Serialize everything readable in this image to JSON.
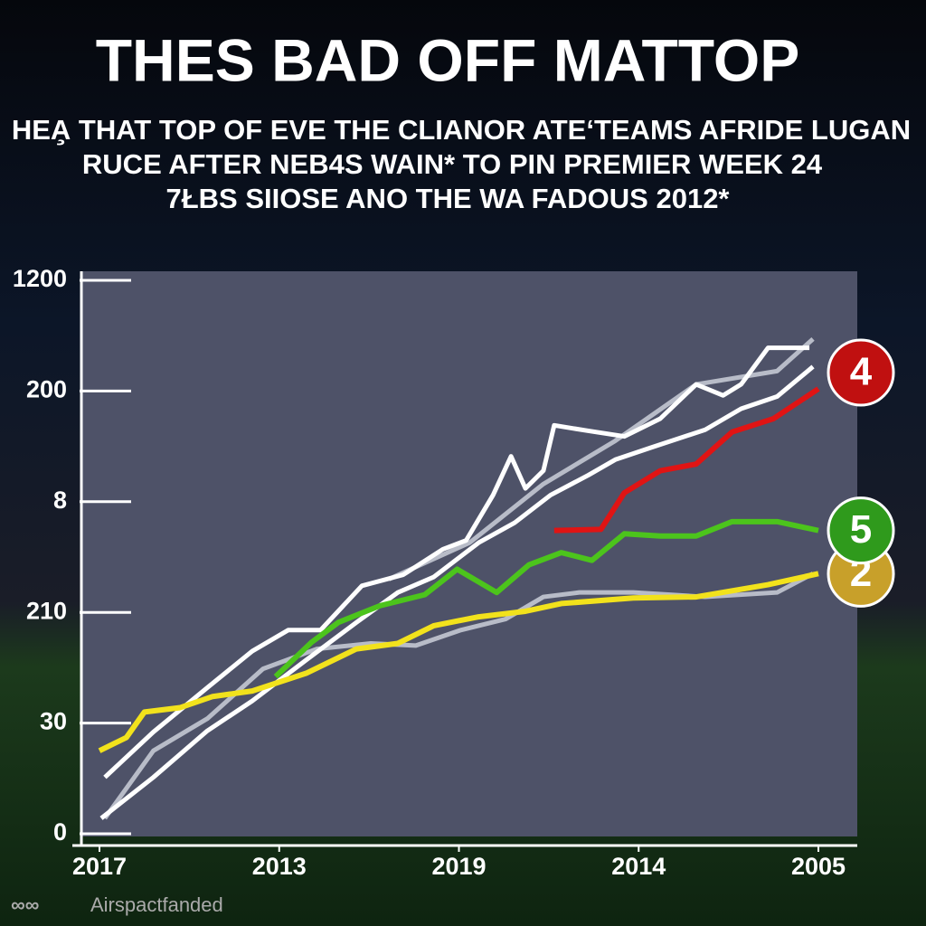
{
  "chart_data": {
    "type": "line",
    "title": "THES BAD OFF MATTOP",
    "subtitle": [
      "HEA̧ THAT TOP OF EVE THE CLIANOR ATE‘TEAMS AFRIDE LUGAN",
      "RUCE AFTER NEB4S WAIN* TO PIN PREMIER WEEK 24",
      "7ŁBS SIIOSE ANO THE WA FADOUS 2012*"
    ],
    "watermark": "Airspactfanded",
    "xlim": [
      0,
      40
    ],
    "xticks": [
      {
        "value": 0,
        "label": "2017"
      },
      {
        "value": 10,
        "label": "2013"
      },
      {
        "value": 20,
        "label": "2019"
      },
      {
        "value": 30,
        "label": "2014"
      },
      {
        "value": 40,
        "label": "2005"
      }
    ],
    "ylim": [
      0,
      5
    ],
    "yticks": [
      {
        "value": 0,
        "label": "0"
      },
      {
        "value": 1,
        "label": "30"
      },
      {
        "value": 2,
        "label": "210"
      },
      {
        "value": 3,
        "label": "8"
      },
      {
        "value": 4,
        "label": "200"
      },
      {
        "value": 5,
        "label": "1200"
      }
    ],
    "series": [
      {
        "color": "#b8bcc8",
        "x": [
          0.3,
          3,
          6,
          9.1,
          12.1,
          15.1,
          17.6,
          20.1,
          22.6,
          24.7,
          26.7,
          29.7,
          33.7,
          37.7,
          39.7
        ],
        "values": [
          0.14,
          0.75,
          1.04,
          1.49,
          1.67,
          1.72,
          1.7,
          1.84,
          1.94,
          2.14,
          2.18,
          2.18,
          2.14,
          2.18,
          2.35
        ]
      },
      {
        "color": "#b8bcc8",
        "x": [
          16.1,
          20.6,
          24.7,
          28.7,
          33.2,
          37.7,
          39.7
        ],
        "values": [
          2.3,
          2.63,
          3.16,
          3.55,
          4.06,
          4.18,
          4.47
        ]
      },
      {
        "color": "#ffffff",
        "x": [
          0.3,
          3,
          6,
          8.5,
          10.5,
          12.3,
          14.6,
          16.9,
          19.1,
          20.4,
          21.9,
          22.9,
          23.7,
          24.7,
          25.3,
          27.2,
          29.2,
          31.2,
          33.2,
          34.7,
          35.7,
          37.2,
          39.5
        ],
        "values": [
          0.51,
          0.92,
          1.32,
          1.65,
          1.84,
          1.84,
          2.24,
          2.34,
          2.57,
          2.65,
          3.06,
          3.41,
          3.12,
          3.28,
          3.69,
          3.64,
          3.59,
          3.75,
          4.06,
          3.96,
          4.06,
          4.39,
          4.39
        ]
      },
      {
        "color": "#ffffff",
        "x": [
          0.1,
          3,
          6,
          8.5,
          11.5,
          14.3,
          16.6,
          18.6,
          21.1,
          23.1,
          25.1,
          27.2,
          28.7,
          30.7,
          33.7,
          35.7,
          37.7,
          39.7
        ],
        "values": [
          0.14,
          0.51,
          0.93,
          1.2,
          1.57,
          1.91,
          2.18,
          2.32,
          2.63,
          2.81,
          3.06,
          3.24,
          3.38,
          3.49,
          3.65,
          3.84,
          3.95,
          4.22
        ]
      },
      {
        "name": "2",
        "color": "#f2e21c",
        "badge": "#c8a02a",
        "x": [
          0,
          1.5,
          2.5,
          4.5,
          6.3,
          8.5,
          11.5,
          14.3,
          16.6,
          18.6,
          21.1,
          23.7,
          25.7,
          29.7,
          33.2,
          37.2,
          40
        ],
        "values": [
          0.75,
          0.87,
          1.1,
          1.14,
          1.24,
          1.29,
          1.45,
          1.67,
          1.72,
          1.88,
          1.96,
          2.01,
          2.08,
          2.13,
          2.14,
          2.25,
          2.35
        ]
      },
      {
        "name": "5",
        "color": "#4cc41c",
        "badge": "#2f9a1c",
        "x": [
          9.8,
          11.8,
          13.3,
          15.6,
          18.1,
          19.9,
          22.1,
          23.9,
          25.7,
          27.4,
          29.2,
          31.2,
          33.2,
          35.2,
          37.7,
          40
        ],
        "values": [
          1.42,
          1.73,
          1.91,
          2.06,
          2.16,
          2.39,
          2.18,
          2.43,
          2.54,
          2.47,
          2.71,
          2.69,
          2.69,
          2.82,
          2.82,
          2.74
        ]
      },
      {
        "name": "4",
        "color": "#e01414",
        "badge": "#c01010",
        "x": [
          25.3,
          27.9,
          29.2,
          31.2,
          33.2,
          35.2,
          37.5,
          40
        ],
        "values": [
          2.74,
          2.75,
          3.08,
          3.28,
          3.34,
          3.63,
          3.75,
          4.02
        ]
      }
    ]
  }
}
